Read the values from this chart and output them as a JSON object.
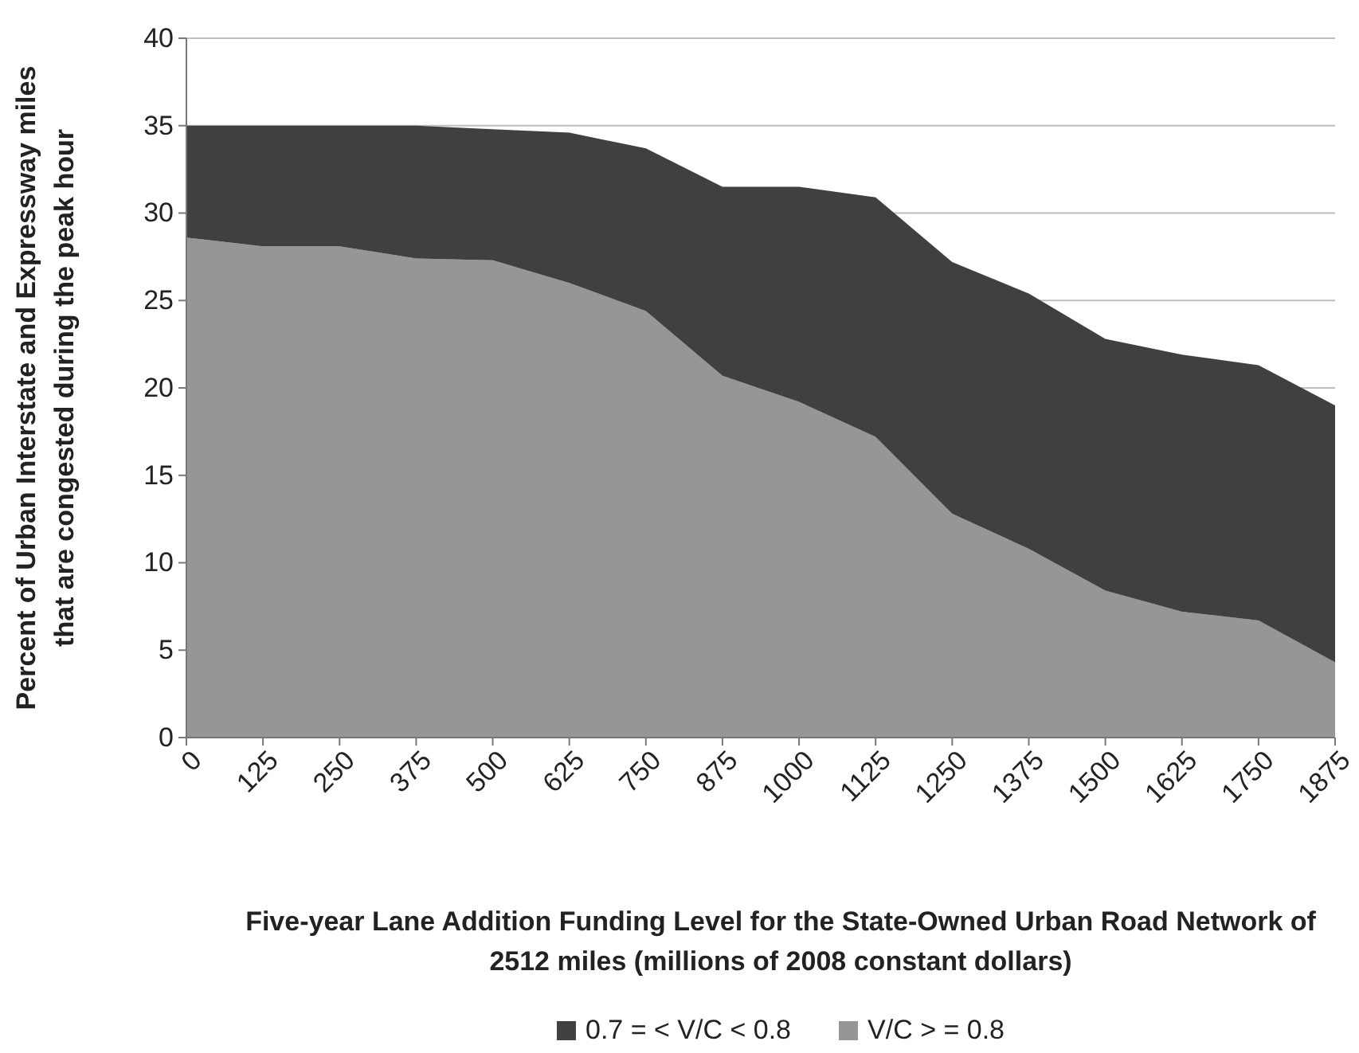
{
  "chart_data": {
    "type": "area",
    "stacked": true,
    "xlabel": "Five-year Lane Addition Funding Level for the State-Owned Urban Road Network of 2512 miles (millions of 2008 constant dollars)",
    "ylabel": "Percent of Urban Interstate and Expressway miles that are congested during the peak hour",
    "categories": [
      "0",
      "125",
      "250",
      "375",
      "500",
      "625",
      "750",
      "875",
      "1000",
      "1125",
      "1250",
      "1375",
      "1500",
      "1625",
      "1750",
      "1875"
    ],
    "series": [
      {
        "name": "V/C > = 0.8",
        "color": "#969696",
        "values": [
          28.6,
          28.1,
          28.1,
          27.4,
          27.3,
          26.0,
          24.4,
          20.7,
          19.2,
          17.2,
          12.8,
          10.8,
          8.4,
          7.2,
          6.7,
          4.3
        ]
      },
      {
        "name": "0.7 = < V/C < 0.8",
        "color": "#404040",
        "values": [
          6.4,
          6.9,
          6.9,
          7.6,
          7.5,
          8.6,
          9.3,
          10.8,
          12.3,
          13.7,
          14.4,
          14.6,
          14.4,
          14.7,
          14.6,
          14.7
        ]
      }
    ],
    "ylim": [
      0,
      40
    ],
    "yticks": [
      0,
      5,
      10,
      15,
      20,
      25,
      30,
      35,
      40
    ],
    "grid": "y",
    "legend": "bottom"
  }
}
